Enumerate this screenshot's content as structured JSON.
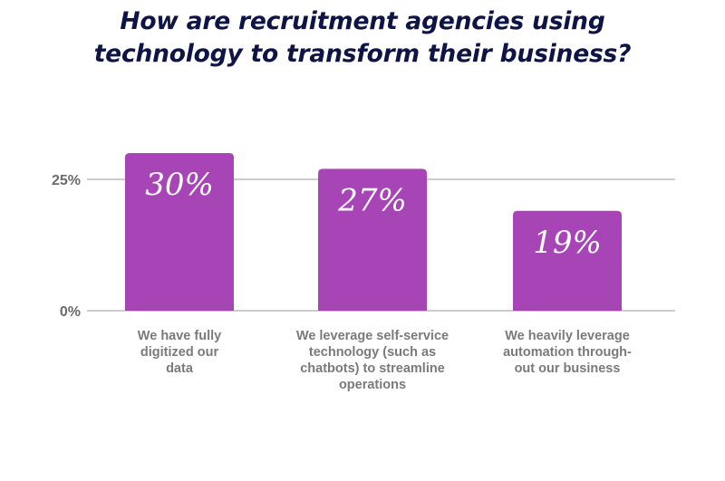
{
  "chart_data": {
    "type": "bar",
    "title_lines": [
      "How are recruitment agencies using",
      "technology to transform their business?"
    ],
    "categories": [
      "We have fully digitized our data",
      "We leverage self-service technology (such as chatbots) to streamline operations",
      "We heavily leverage automation through-out our business"
    ],
    "category_lines": [
      [
        "We have fully",
        "digitized our",
        "data"
      ],
      [
        "We leverage self-service",
        "technology (such as",
        "chatbots) to streamline",
        "operations"
      ],
      [
        "We heavily leverage",
        "automation through-",
        "out our business"
      ]
    ],
    "values": [
      30,
      27,
      19
    ],
    "data_labels": [
      "30%",
      "27%",
      "19%"
    ],
    "y_ticks": [
      {
        "value": 0,
        "label": "0%"
      },
      {
        "value": 25,
        "label": "25%"
      }
    ],
    "ylim": [
      0,
      40
    ],
    "grid": true,
    "legend": "none",
    "bar_color": "#a845b6",
    "title_color": "#0f1446",
    "axis_label_color": "#6b6b6b"
  }
}
